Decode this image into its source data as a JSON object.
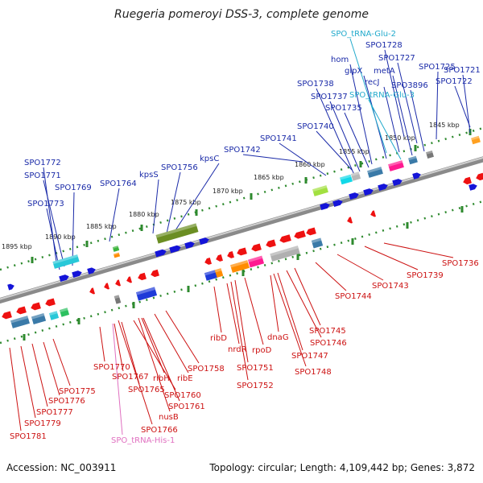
{
  "title": "Ruegeria pomeroyi DSS-3, complete genome",
  "footer": {
    "accession": "Accession: NC_003911",
    "topology": "Topology: circular; Length: 4,109,442 bp; Genes: 3,872"
  },
  "colors": {
    "top_strand": "#1a2aa8",
    "bottom_strand": "#cc1111",
    "trna_top": "#22aacc",
    "trna_bottom": "#e070c0",
    "backbone": "#8a8a8a",
    "ruler_tick": "#2e8a2e"
  },
  "kbp_labels": [
    "1845 kbp",
    "1850 kbp",
    "1855 kbp",
    "1860 kbp",
    "1865 kbp",
    "1870 kbp",
    "1875 kbp",
    "1880 kbp",
    "1885 kbp",
    "1890 kbp",
    "1895 kbp"
  ],
  "top_labels": [
    "SPO1772",
    "SPO1771",
    "SPO1769",
    "SPO1773",
    "SPO1764",
    "kpsS",
    "SPO1756",
    "kpsC",
    "SPO1742",
    "SPO1741",
    "SPO1740",
    "SPO1738",
    "SPO1737",
    "SPO1735",
    "hom",
    "glpX",
    "recJ",
    "SPO_tRNA-Glu-3",
    "metA",
    "SPO1728",
    "SPO1727",
    "SPO3896",
    "SPO1725",
    "SPO1721",
    "SPO1722",
    "SPO_tRNA-Glu-2"
  ],
  "bottom_labels": [
    "SPO1781",
    "SPO1779",
    "SPO1777",
    "SPO1776",
    "SPO1775",
    "SPO1770",
    "SPO1767",
    "SPO1765",
    "ribH",
    "ribE",
    "SPO1758",
    "SPO1760",
    "SPO1761",
    "nusB",
    "SPO1766",
    "SPO_tRNA-His-1",
    "ribD",
    "nrdR",
    "rpoD",
    "SPO1751",
    "SPO1752",
    "dnaG",
    "SPO1747",
    "SPO1748",
    "SPO1746",
    "SPO1745",
    "SPO1744",
    "SPO1743",
    "SPO1739",
    "SPO1736"
  ]
}
